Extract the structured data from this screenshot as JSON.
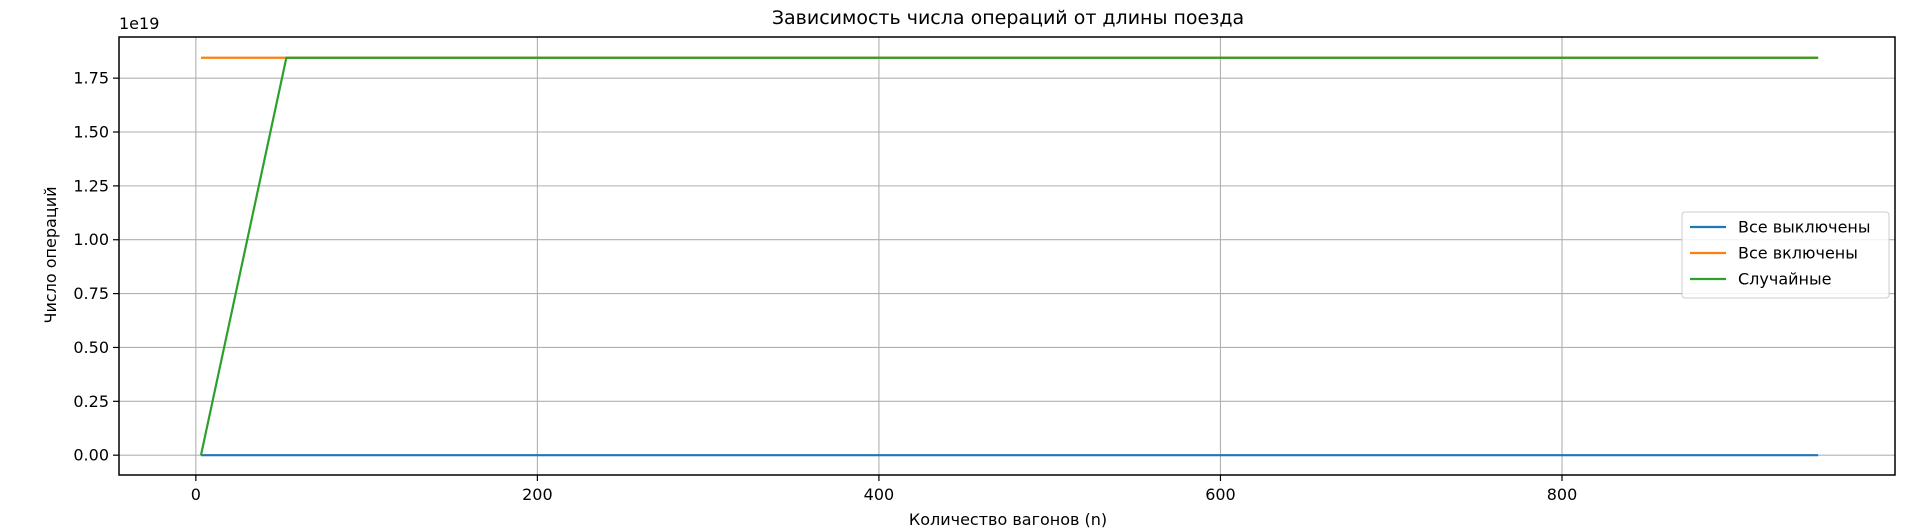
{
  "chart_data": {
    "type": "line",
    "title": "Зависимость числа операций от длины поезда",
    "xlabel": "Количество вагонов (n)",
    "ylabel": "Число операций",
    "y_offset_text": "1e19",
    "xlim": [
      -45,
      995
    ],
    "ylim": [
      -0.092,
      1.941
    ],
    "x_ticks": [
      0,
      200,
      400,
      600,
      800
    ],
    "x_tick_labels": [
      "0",
      "200",
      "400",
      "600",
      "800"
    ],
    "y_ticks": [
      0.0,
      0.25,
      0.5,
      0.75,
      1.0,
      1.25,
      1.5,
      1.75
    ],
    "y_tick_labels": [
      "0.00",
      "0.25",
      "0.50",
      "0.75",
      "1.00",
      "1.25",
      "1.50",
      "1.75"
    ],
    "grid": true,
    "legend_position": "center-right",
    "series": [
      {
        "name": "Все выключены",
        "color": "#1f77b4",
        "x": [
          3,
          950
        ],
        "y": [
          0.0,
          0.0
        ]
      },
      {
        "name": "Все включены",
        "color": "#ff7f0e",
        "x": [
          3,
          50,
          950
        ],
        "y": [
          1.8447,
          1.8447,
          1.8447
        ]
      },
      {
        "name": "Случайные",
        "color": "#2ca02c",
        "x": [
          3,
          53,
          950
        ],
        "y": [
          0.0,
          1.8447,
          1.8447
        ]
      }
    ]
  }
}
